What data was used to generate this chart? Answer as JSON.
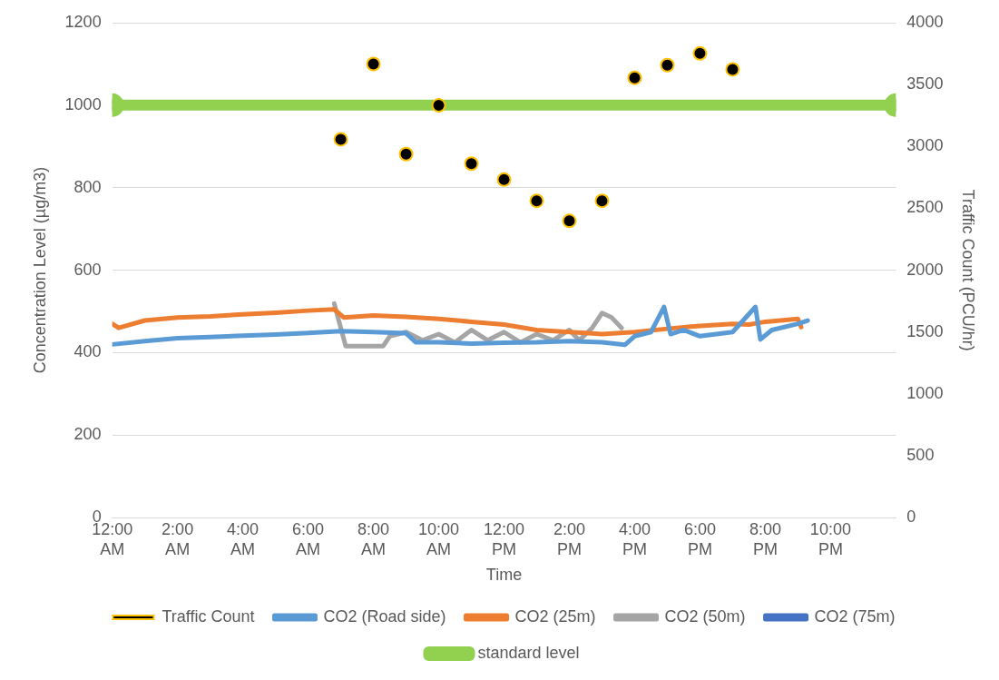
{
  "chart_data": {
    "type": "line",
    "xlabel": "Time",
    "ylabel": "Concentration Level (µg/m3)",
    "y2label": "Traffic Count (PCU/hr)",
    "xlim": [
      0,
      24
    ],
    "xticks": [
      {
        "value": 0,
        "label": "12:00 AM"
      },
      {
        "value": 2,
        "label": "2:00 AM"
      },
      {
        "value": 4,
        "label": "4:00 AM"
      },
      {
        "value": 6,
        "label": "6:00 AM"
      },
      {
        "value": 8,
        "label": "8:00 AM"
      },
      {
        "value": 10,
        "label": "10:00 AM"
      },
      {
        "value": 12,
        "label": "12:00 PM"
      },
      {
        "value": 14,
        "label": "2:00 PM"
      },
      {
        "value": 16,
        "label": "4:00 PM"
      },
      {
        "value": 18,
        "label": "6:00 PM"
      },
      {
        "value": 20,
        "label": "8:00 PM"
      },
      {
        "value": 22,
        "label": "10:00 PM"
      }
    ],
    "ylim": [
      0,
      1200
    ],
    "yticks": [
      0,
      200,
      400,
      600,
      800,
      1000,
      1200
    ],
    "y2lim": [
      0,
      4000
    ],
    "y2ticks": [
      0,
      500,
      1000,
      1500,
      2000,
      2500,
      3000,
      3500,
      4000
    ],
    "grid": "y",
    "legend": "bottom",
    "line_style": "solid",
    "series": [
      {
        "name": "CO2 (Road side)",
        "color": "#5b9bd5",
        "marker": "none",
        "x": [
          0,
          1,
          2,
          3,
          4,
          5,
          6,
          7,
          8,
          9,
          9.3,
          10,
          11,
          12,
          13,
          14,
          15,
          15.7,
          16,
          16.5,
          16.9,
          17.1,
          17.5,
          18,
          19,
          19.7,
          19.85,
          20.2,
          21,
          21.3
        ],
        "values": [
          420,
          428,
          435,
          438,
          441,
          444,
          448,
          452,
          450,
          447,
          425,
          425,
          422,
          424,
          425,
          428,
          425,
          419,
          440,
          450,
          511,
          445,
          455,
          440,
          450,
          511,
          432,
          455,
          470,
          478
        ]
      },
      {
        "name": "CO2 (25m)",
        "color": "#ed7d31",
        "marker": "none",
        "x": [
          0,
          0.2,
          1,
          2,
          3,
          4,
          5,
          6,
          6.8,
          7.1,
          8,
          9,
          10,
          11,
          12,
          13,
          14,
          14.5,
          15,
          16,
          17,
          18,
          19,
          19.5,
          20,
          21,
          21.1
        ],
        "values": [
          470,
          460,
          478,
          485,
          488,
          493,
          497,
          502,
          505,
          485,
          490,
          487,
          482,
          475,
          468,
          455,
          450,
          448,
          445,
          450,
          458,
          465,
          470,
          468,
          475,
          482,
          462
        ]
      },
      {
        "name": "CO2 (50m)",
        "color": "#a5a5a5",
        "marker": "none",
        "x": [
          6.8,
          7.15,
          8.3,
          8.5,
          9,
          9.5,
          10,
          10.5,
          11,
          11.5,
          12,
          12.5,
          13,
          13.5,
          14,
          14.3,
          14.7,
          15,
          15.3,
          15.6
        ],
        "values": [
          519,
          416,
          416,
          440,
          450,
          430,
          445,
          425,
          455,
          430,
          450,
          425,
          445,
          430,
          455,
          430,
          460,
          496,
          485,
          460
        ]
      },
      {
        "name": "CO2 (75m)",
        "color": "#4472c4",
        "marker": "none"
      },
      {
        "name": "standard level",
        "color": "#92d050",
        "marker": "circle",
        "x": [
          0,
          24
        ],
        "values": [
          1000,
          1000
        ]
      },
      {
        "name": "Traffic Count",
        "type": "scatter",
        "axis": "y2",
        "color": "#ffc000",
        "marker": "circle",
        "x": [
          7,
          8,
          9,
          10,
          11,
          12,
          13,
          14,
          15,
          16,
          17,
          18,
          19
        ],
        "values": [
          3058,
          3666,
          2938,
          3332,
          2861,
          2732,
          2561,
          2398,
          2561,
          3555,
          3657,
          3752,
          3623
        ]
      }
    ]
  }
}
